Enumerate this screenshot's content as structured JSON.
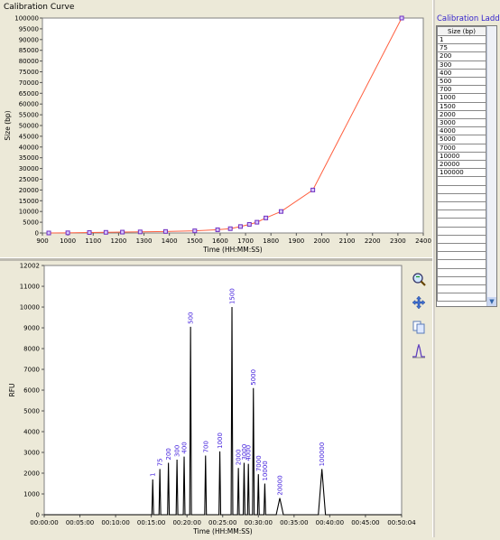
{
  "calibration_curve": {
    "title": "Calibration Curve",
    "xlabel": "Time (HH:MM:SS)",
    "ylabel": "Size (bp)",
    "xticks": [
      "900",
      "1000",
      "1100",
      "1200",
      "1300",
      "1400",
      "1500",
      "1600",
      "1700",
      "1800",
      "1900",
      "2000",
      "2100",
      "2200",
      "2300",
      "2400"
    ],
    "yticks": [
      "0",
      "5000",
      "10000",
      "15000",
      "20000",
      "25000",
      "30000",
      "35000",
      "40000",
      "45000",
      "50000",
      "55000",
      "60000",
      "65000",
      "70000",
      "75000",
      "80000",
      "85000",
      "90000",
      "95000",
      "100000"
    ],
    "line_color": "#ff6040",
    "marker_color": "#7030c0"
  },
  "electropherogram": {
    "xlabel": "Time (HH:MM:SS)",
    "ylabel": "RFU",
    "xticks": [
      "00:00:00",
      "00:05:00",
      "00:10:00",
      "00:15:00",
      "00:20:00",
      "00:25:00",
      "00:30:00",
      "00:35:00",
      "00:40:00",
      "00:45:00",
      "00:50:04"
    ],
    "yticks": [
      "0",
      "1000",
      "2000",
      "3000",
      "4000",
      "5000",
      "6000",
      "7000",
      "8000",
      "9000",
      "10000",
      "11000",
      "12002"
    ],
    "peak_label_color": "#4422dd"
  },
  "calibration_ladder": {
    "title": "Calibration Ladder",
    "column_header": "Size (bp)",
    "rows": [
      "1",
      "75",
      "200",
      "300",
      "400",
      "500",
      "700",
      "1000",
      "1500",
      "2000",
      "3000",
      "4000",
      "5000",
      "7000",
      "10000",
      "20000",
      "100000"
    ]
  },
  "tools": [
    "zoom-icon",
    "pan-icon",
    "copy-icon",
    "peak-tool-icon"
  ],
  "chart_data": [
    {
      "type": "line",
      "title": "Calibration Curve",
      "xlabel": "Time (HH:MM:SS)",
      "ylabel": "Size (bp)",
      "xlim": [
        900,
        2400
      ],
      "ylim": [
        0,
        100000
      ],
      "grid": false,
      "series": [
        {
          "x": [
            925,
            1000,
            1085,
            1150,
            1215,
            1285,
            1385,
            1500,
            1590,
            1640,
            1680,
            1715,
            1745,
            1780,
            1840,
            1965,
            2315
          ],
          "y": [
            1,
            75,
            200,
            300,
            400,
            500,
            700,
            1000,
            1500,
            2000,
            3000,
            4000,
            5000,
            7000,
            10000,
            20000,
            100000
          ]
        }
      ]
    },
    {
      "type": "line",
      "xlabel": "Time (HH:MM:SS)",
      "ylabel": "RFU",
      "ylim": [
        0,
        12002
      ],
      "grid": false,
      "peaks": [
        {
          "label": "1",
          "t": 15.2,
          "h": 1700
        },
        {
          "label": "75",
          "t": 16.2,
          "h": 2200
        },
        {
          "label": "200",
          "t": 17.4,
          "h": 2500
        },
        {
          "label": "300",
          "t": 18.6,
          "h": 2650
        },
        {
          "label": "400",
          "t": 19.6,
          "h": 2800
        },
        {
          "label": "500",
          "t": 20.5,
          "h": 9050
        },
        {
          "label": "700",
          "t": 22.6,
          "h": 2850
        },
        {
          "label": "1000",
          "t": 24.6,
          "h": 3050
        },
        {
          "label": "1500",
          "t": 26.3,
          "h": 10000
        },
        {
          "label": "2000",
          "t": 27.2,
          "h": 2250
        },
        {
          "label": "3000",
          "t": 28.0,
          "h": 2500
        },
        {
          "label": "4000",
          "t": 28.6,
          "h": 2450
        },
        {
          "label": "5000",
          "t": 29.3,
          "h": 6100
        },
        {
          "label": "7000",
          "t": 30.0,
          "h": 1950
        },
        {
          "label": "10000",
          "t": 30.9,
          "h": 1500
        },
        {
          "label": "20000",
          "t": 33.0,
          "h": 800
        },
        {
          "label": "100000",
          "t": 38.9,
          "h": 2200
        }
      ]
    }
  ]
}
